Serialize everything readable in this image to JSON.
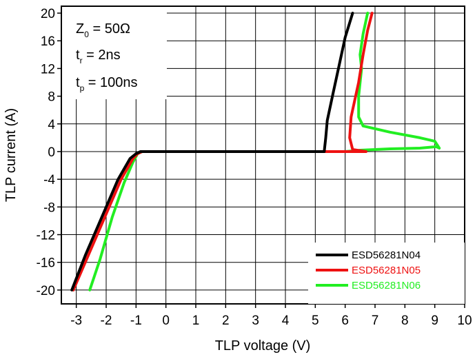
{
  "chart_data": {
    "type": "line",
    "xlabel": "TLP voltage (V)",
    "ylabel": "TLP current (A)",
    "xlim": [
      -3.5,
      10
    ],
    "ylim": [
      -22,
      21
    ],
    "xticks": [
      -3,
      -2,
      -1,
      0,
      1,
      2,
      3,
      4,
      5,
      6,
      7,
      8,
      9,
      10
    ],
    "yticks": [
      20,
      16,
      12,
      8,
      4,
      0,
      -4,
      -8,
      -12,
      -16,
      -20
    ],
    "xtick_labels": [
      "-3",
      "-2",
      "-1",
      "0",
      "1",
      "2",
      "3",
      "4",
      "5",
      "6",
      "7",
      "8",
      "9",
      "10"
    ],
    "ytick_labels": [
      "20",
      "16",
      "12",
      "8",
      "4",
      "0",
      "-4",
      "-8",
      "-12",
      "-16",
      "-20"
    ],
    "grid": true,
    "legend_position": "bottom-right",
    "annotations": {
      "z0": {
        "main": "Z",
        "sub": "0",
        "rest": " = 50Ω"
      },
      "tr": {
        "main": "t",
        "sub": "r",
        "rest": " = 2ns"
      },
      "tp": {
        "main": "t",
        "sub": "p",
        "rest": " = 100ns"
      }
    },
    "series": [
      {
        "name": "ESD56281N06",
        "color": "#22ee22",
        "label_color": "#22ee22",
        "x": [
          -2.55,
          -2.2,
          -1.8,
          -1.4,
          -1.1,
          -0.95,
          -0.8,
          0,
          2,
          4,
          6,
          6.5,
          7.5,
          8.5,
          9.05,
          9.15,
          9.0,
          8.5,
          7.5,
          6.6,
          6.45,
          6.45,
          6.55,
          6.5,
          6.6,
          6.75
        ],
        "y": [
          -20,
          -15.5,
          -9.5,
          -4.5,
          -1.5,
          -0.3,
          0,
          0,
          0,
          0,
          0,
          0.2,
          0.4,
          0.5,
          0.7,
          0.5,
          1.5,
          2.0,
          2.8,
          3.7,
          5.0,
          8.0,
          12.0,
          14.0,
          17.0,
          20.0
        ]
      },
      {
        "name": "ESD56281N05",
        "color": "#ee1111",
        "label_color": "#ee1111",
        "x": [
          -3.1,
          -2.6,
          -2.0,
          -1.5,
          -1.1,
          -0.95,
          -0.8,
          0,
          2,
          4,
          5.5,
          6.0,
          6.7,
          6.25,
          6.15,
          6.2,
          6.45,
          6.6,
          6.75,
          6.9
        ],
        "y": [
          -20,
          -15,
          -9,
          -4,
          -1.0,
          -0.3,
          0,
          0,
          0,
          0,
          0,
          0,
          0,
          0.3,
          2.0,
          5.0,
          10.0,
          14.0,
          17.5,
          20.0
        ]
      },
      {
        "name": "ESD56281N04",
        "color": "#000000",
        "label_color": "#000000",
        "x": [
          -3.15,
          -2.7,
          -2.1,
          -1.6,
          -1.2,
          -1.0,
          -0.85,
          0,
          2,
          4,
          5.3,
          5.35,
          5.4,
          5.6,
          5.8,
          6.0,
          6.25
        ],
        "y": [
          -20,
          -15,
          -9,
          -4,
          -1.0,
          -0.3,
          0,
          0,
          0,
          0,
          0,
          2.0,
          4.5,
          8.5,
          12.5,
          16.5,
          20.0
        ]
      }
    ]
  }
}
